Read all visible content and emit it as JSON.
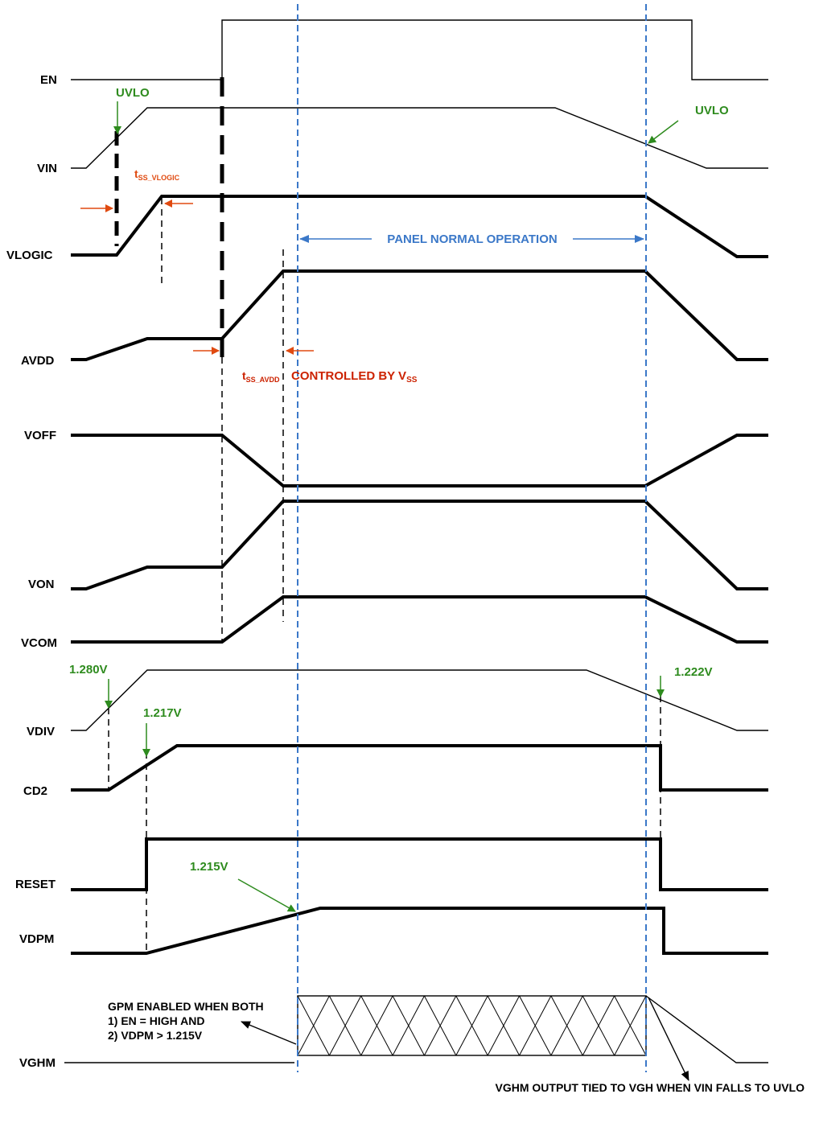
{
  "signals": {
    "en": "EN",
    "vin": "VIN",
    "vlogic": "VLOGIC",
    "avdd": "AVDD",
    "voff": "VOFF",
    "von": "VON",
    "vcom": "VCOM",
    "vdiv": "VDIV",
    "cd2": "CD2",
    "reset": "RESET",
    "vdpm": "VDPM",
    "vghm": "VGHM"
  },
  "annotations": {
    "uvlo_left": "UVLO",
    "uvlo_right": "UVLO",
    "t_ss_vlogic_main": "t",
    "t_ss_vlogic_sub": "SS_VLOGIC",
    "panel_normal_operation": "PANEL NORMAL OPERATION",
    "t_ss_avdd_main": "t",
    "t_ss_avdd_sub": "SS_AVDD",
    "controlled_by_main": "CONTROLLED BY V",
    "controlled_by_sub": "SS",
    "vdiv_rise_threshold": "1.280V",
    "cd2_threshold": "1.217V",
    "vdiv_fall_threshold": "1.222V",
    "vdpm_threshold": "1.215V",
    "gpm_line1": "GPM ENABLED WHEN BOTH",
    "gpm_line2": "1) EN = HIGH AND",
    "gpm_line3": "2) VDPM > 1.215V",
    "vghm_note": "VGHM OUTPUT TIED TO VGH WHEN VIN FALLS TO UVLO"
  },
  "colors": {
    "green": "#2e8b1e",
    "red": "#cc2200",
    "orange": "#e04a10",
    "blue": "#3b78c8",
    "black": "#000000"
  }
}
